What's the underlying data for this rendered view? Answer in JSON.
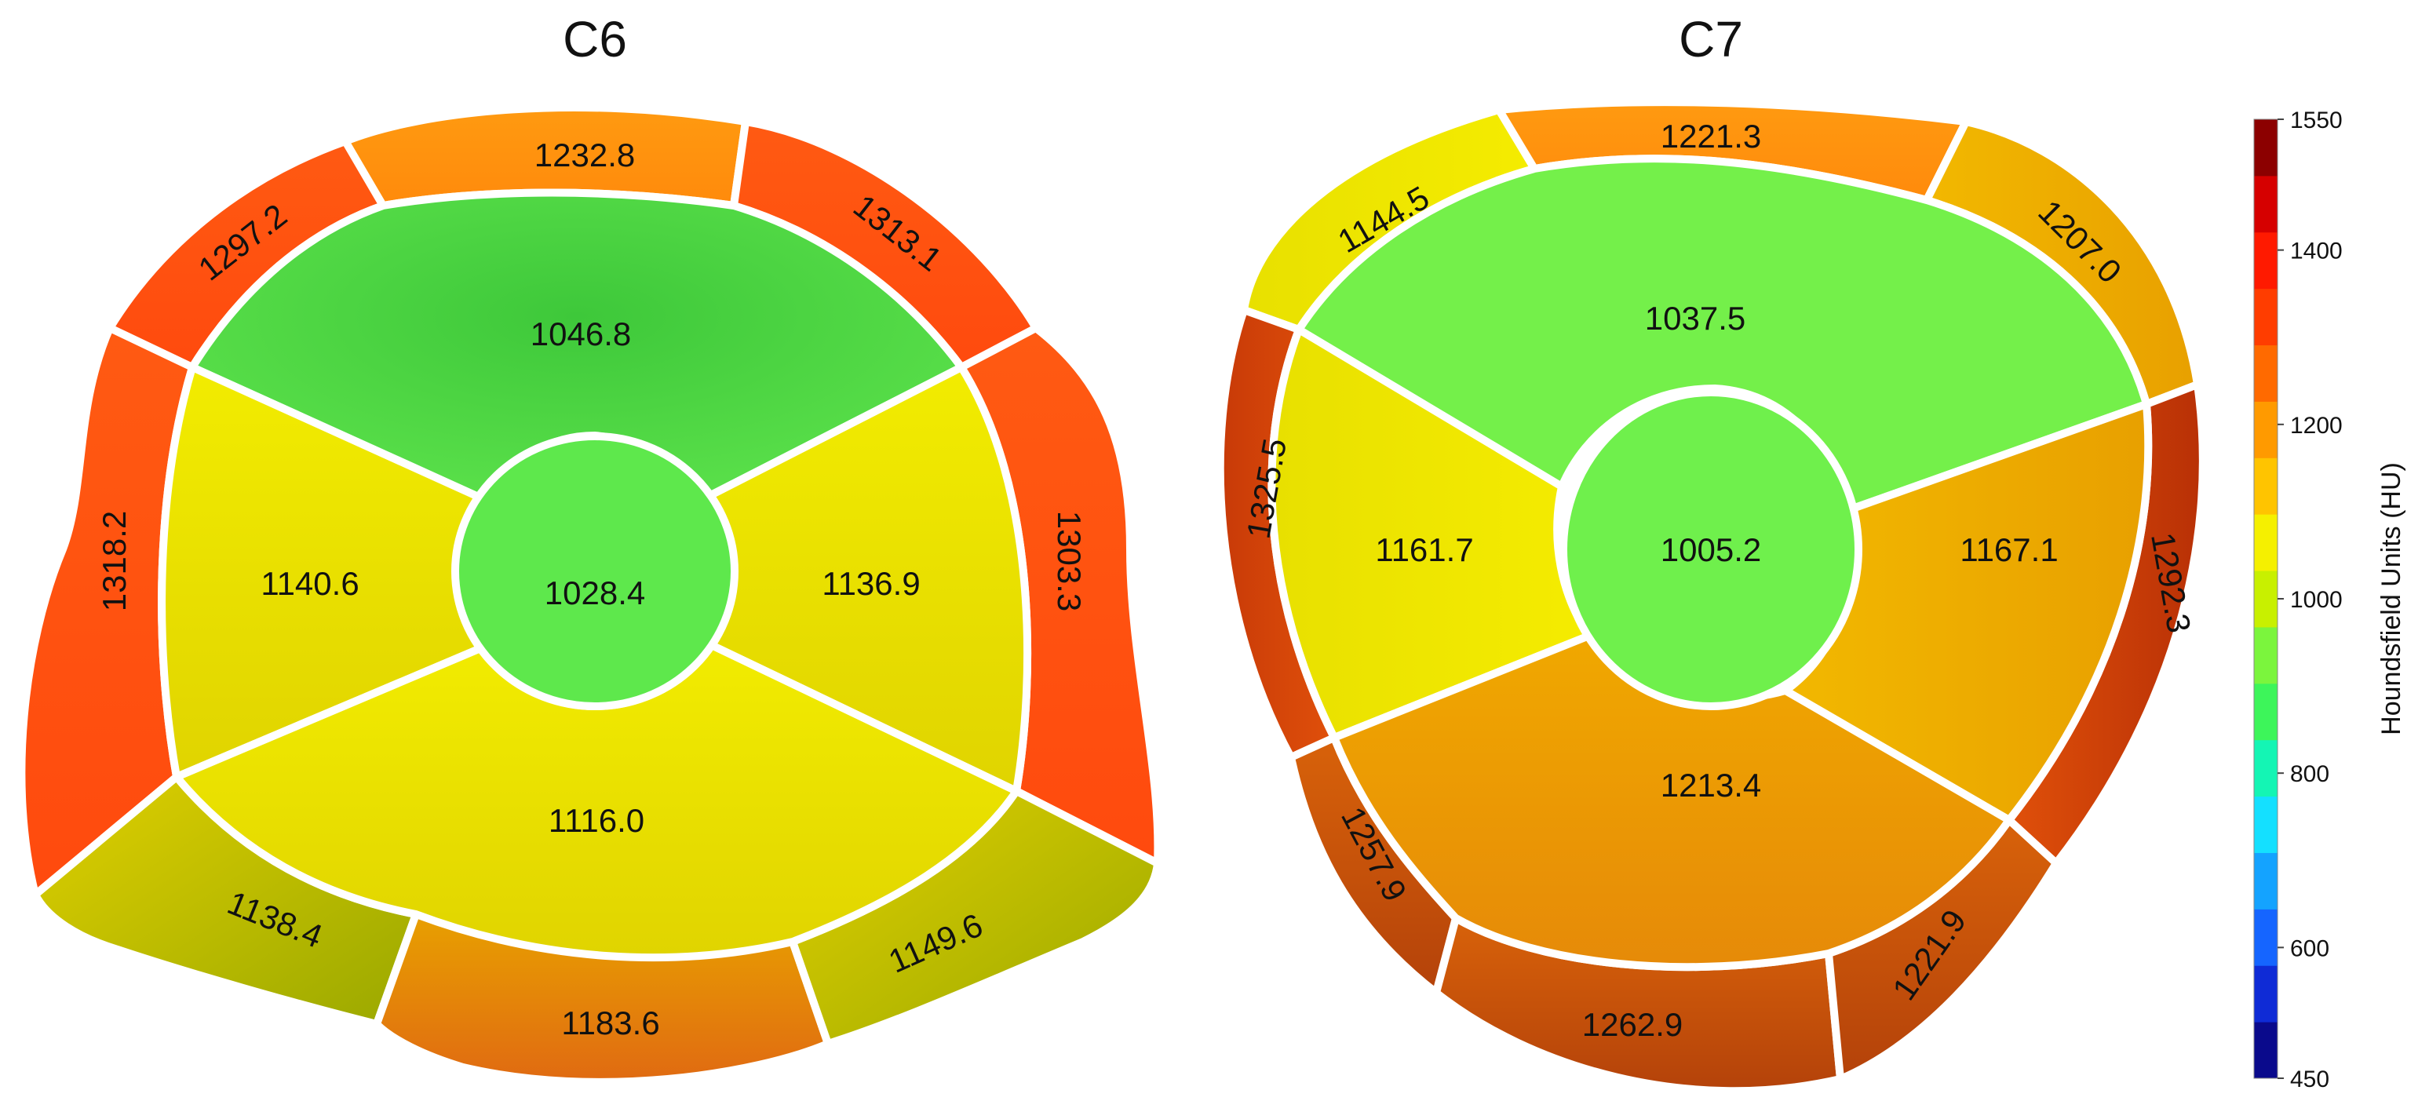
{
  "diagrams": [
    {
      "title": "C6",
      "segments": {
        "center": "1028.4",
        "inner_top": "1046.8",
        "inner_left": "1140.6",
        "inner_right": "1136.9",
        "inner_bottom": "1116.0",
        "outer_top": "1232.8",
        "outer_top_left": "1297.2",
        "outer_top_right": "1313.1",
        "outer_left": "1318.2",
        "outer_right": "1303.3",
        "outer_bottom_left": "1138.4",
        "outer_bottom": "1183.6",
        "outer_bottom_right": "1149.6"
      }
    },
    {
      "title": "C7",
      "segments": {
        "center": "1005.2",
        "inner_top": "1037.5",
        "inner_left": "1161.7",
        "inner_right": "1167.1",
        "inner_bottom": "1213.4",
        "outer_top": "1221.3",
        "outer_top_left": "1144.5",
        "outer_top_right": "1207.0",
        "outer_left": "1325.5",
        "outer_right": "1292.3",
        "outer_bottom_left": "1257.9",
        "outer_bottom": "1262.9",
        "outer_bottom_right": "1221.9"
      }
    }
  ],
  "colorbar": {
    "label": "Houndsfield Units (HU)",
    "min": 450,
    "max": 1550,
    "ticks": [
      "1550",
      "1400",
      "1200",
      "1000",
      "800",
      "600",
      "450"
    ],
    "colors": [
      "#0a0a8c",
      "#0f2bd6",
      "#1565ff",
      "#14a3ff",
      "#14e0ff",
      "#14f5b4",
      "#3df55a",
      "#7bf53d",
      "#c8f000",
      "#f5f000",
      "#ffc400",
      "#ff9a00",
      "#ff6a00",
      "#ff3d00",
      "#ff1a00",
      "#d60000",
      "#8c0000"
    ]
  }
}
